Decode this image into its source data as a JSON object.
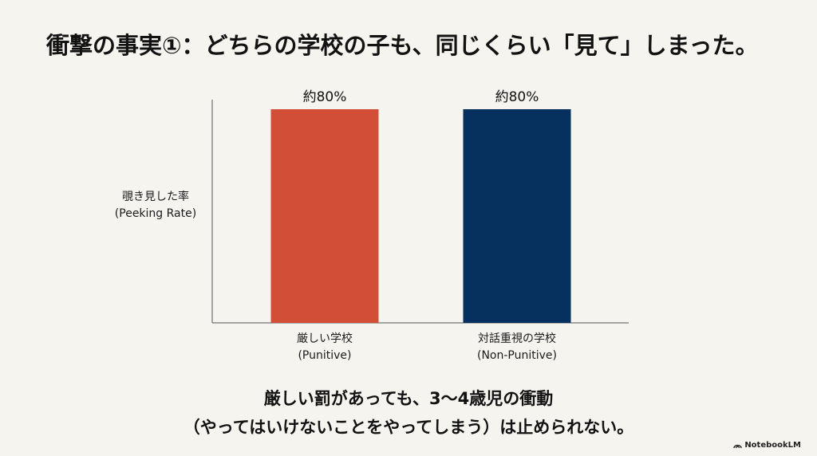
{
  "slide": {
    "title": "衝撃の事実①：どちらの学校の子も、同じくらい「見て」しまった。",
    "caption_line1": "厳しい罰があっても、3〜4歳児の衝動",
    "caption_line2": "（やってはいけないことをやってしまう）は止められない。",
    "brand": "NotebookLM",
    "brand_icon": "notebooklm-logo-icon"
  },
  "chart_data": {
    "type": "bar",
    "title": "",
    "ylabel_line1": "覗き見した率",
    "ylabel_line2": "(Peeking Rate)",
    "ylim": [
      0,
      100
    ],
    "grid": false,
    "categories": [
      {
        "line1": "厳しい学校",
        "line2": "(Punitive)"
      },
      {
        "line1": "対話重視の学校",
        "line2": "(Non-Punitive)"
      }
    ],
    "values": [
      80,
      80
    ],
    "value_labels": [
      "約80%",
      "約80%"
    ],
    "colors": [
      "#d34e36",
      "#06315f"
    ]
  }
}
